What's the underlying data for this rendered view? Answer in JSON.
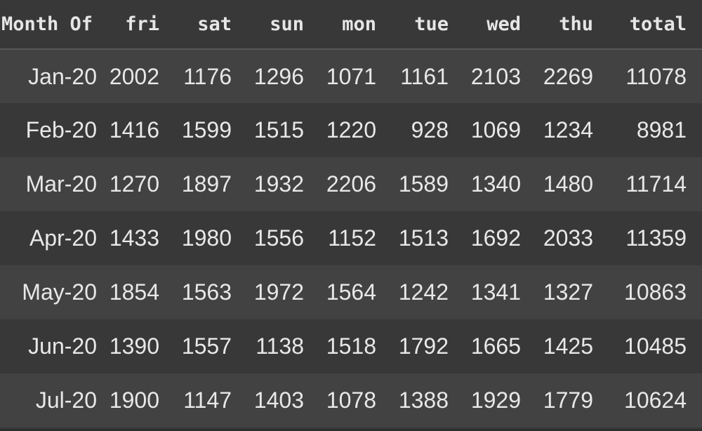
{
  "table": {
    "columns": [
      "Month Of",
      "fri",
      "sat",
      "sun",
      "mon",
      "tue",
      "wed",
      "thu",
      "total"
    ],
    "rows": [
      [
        "Jan-20",
        "2002",
        "1176",
        "1296",
        "1071",
        "1161",
        "2103",
        "2269",
        "11078"
      ],
      [
        "Feb-20",
        "1416",
        "1599",
        "1515",
        "1220",
        "928",
        "1069",
        "1234",
        "8981"
      ],
      [
        "Mar-20",
        "1270",
        "1897",
        "1932",
        "2206",
        "1589",
        "1340",
        "1480",
        "11714"
      ],
      [
        "Apr-20",
        "1433",
        "1980",
        "1556",
        "1152",
        "1513",
        "1692",
        "2033",
        "11359"
      ],
      [
        "May-20",
        "1854",
        "1563",
        "1972",
        "1564",
        "1242",
        "1341",
        "1327",
        "10863"
      ],
      [
        "Jun-20",
        "1390",
        "1557",
        "1138",
        "1518",
        "1792",
        "1665",
        "1425",
        "10485"
      ],
      [
        "Jul-20",
        "1900",
        "1147",
        "1403",
        "1078",
        "1388",
        "1929",
        "1779",
        "10624"
      ]
    ]
  },
  "colors": {
    "background": "#383838",
    "row_alt": "#424242",
    "text": "#e8e8e8"
  }
}
